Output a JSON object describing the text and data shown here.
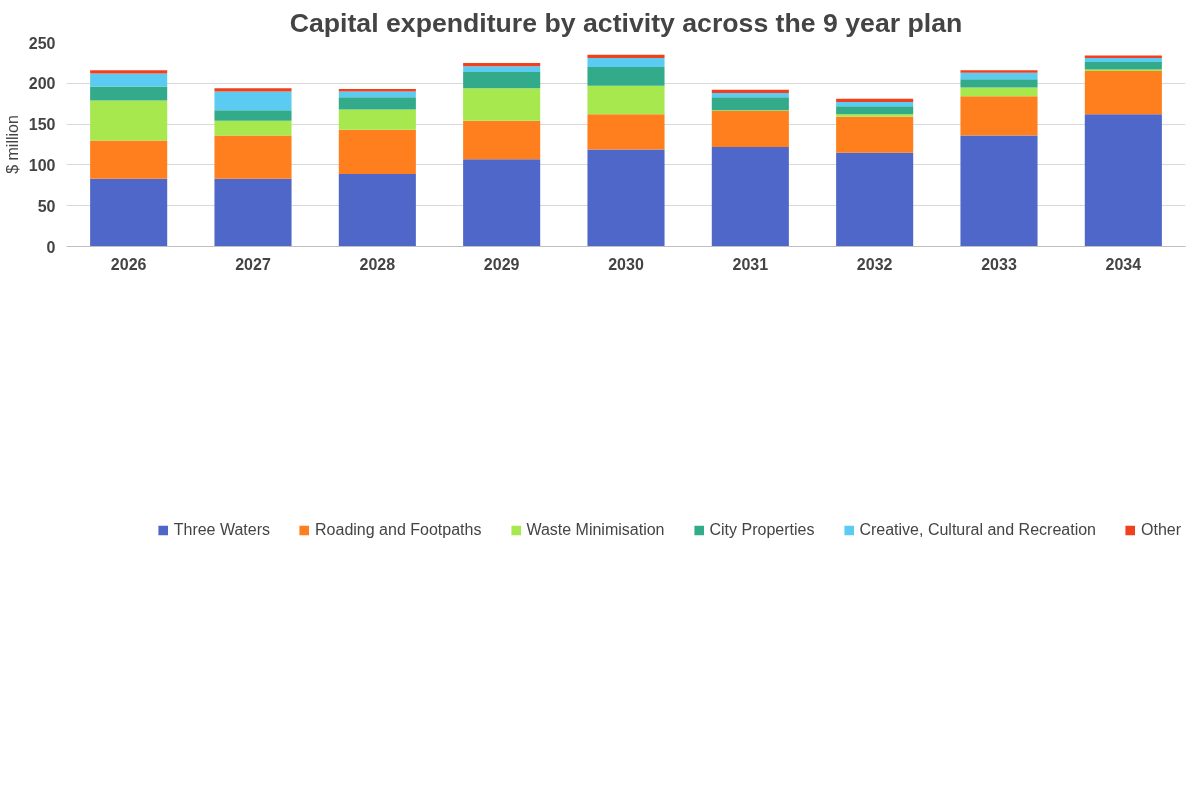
{
  "chart_data": {
    "type": "bar",
    "stacked": true,
    "title": "Capital expenditure by activity across the 9 year plan",
    "ylabel": "$ million",
    "categories": [
      "2026",
      "2027",
      "2028",
      "2029",
      "2030",
      "2031",
      "2032",
      "2033",
      "2034"
    ],
    "ylim": [
      0,
      250
    ],
    "yticks": [
      0,
      50,
      100,
      150,
      200,
      250
    ],
    "grid": "y",
    "legend": "bottom",
    "series": [
      {
        "name": "Three Waters",
        "color": "#4f67c8",
        "values": [
          83,
          83,
          89,
          107,
          119,
          122,
          115,
          136,
          162
        ]
      },
      {
        "name": "Roading and Footpaths",
        "color": "#ff7f1e",
        "values": [
          47,
          53,
          54,
          47,
          43,
          44,
          44,
          48,
          53
        ]
      },
      {
        "name": "Waste Minimisation",
        "color": "#a6e84e",
        "values": [
          49,
          18,
          25,
          40,
          35,
          1,
          3,
          11,
          2
        ]
      },
      {
        "name": "City Properties",
        "color": "#33ab8a",
        "values": [
          17,
          13,
          15,
          20,
          23,
          16,
          10,
          10,
          9
        ]
      },
      {
        "name": "Creative, Cultural and Recreation",
        "color": "#5ccbf2",
        "values": [
          16,
          23,
          7,
          7,
          11,
          5,
          5,
          8,
          5
        ]
      },
      {
        "name": "Other",
        "color": "#f0401e",
        "values": [
          4,
          4,
          3,
          4,
          4,
          4,
          4,
          3,
          3
        ]
      }
    ]
  }
}
